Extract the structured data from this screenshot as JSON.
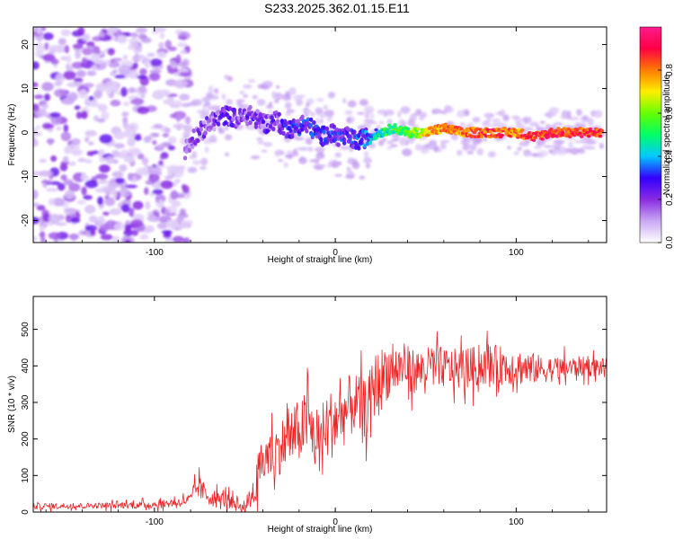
{
  "title": "S233.2025.362.01.15.E11",
  "chart_data": [
    {
      "type": "heatmap",
      "name": "spectrogram",
      "xlabel": "Height of straight line (km)",
      "ylabel": "Frequency (Hz)",
      "xlim": [
        -167,
        150
      ],
      "ylim": [
        -25,
        24
      ],
      "xticks": [
        -100,
        0,
        100
      ],
      "yticks": [
        -20,
        -10,
        0,
        10,
        20
      ],
      "colorbar": {
        "label": "Normalized spectral amplitude",
        "range": [
          0,
          1
        ],
        "ticks": [
          0,
          0.2,
          0.4,
          0.6,
          0.8
        ],
        "tick_labels": [
          "0.0",
          "0.2",
          "0.4",
          "0.6",
          "0.8"
        ],
        "colormap": [
          "#ffffff",
          "#c9a8f3",
          "#8a2be2",
          "#3300ff",
          "#00c8ff",
          "#00ff66",
          "#66ff00",
          "#ffee00",
          "#ff7a00",
          "#ff0044",
          "#ff1a8c"
        ]
      },
      "noise_region_x": [
        -167,
        -83
      ],
      "ridge": {
        "x": [
          -83,
          -78,
          -72,
          -66,
          -60,
          -54,
          -48,
          -43,
          -38,
          -33,
          -28,
          -23,
          -18,
          -13,
          -8,
          -3,
          2,
          7,
          12,
          18,
          25,
          32,
          40,
          50,
          60,
          70,
          80,
          90,
          100,
          110,
          120,
          130,
          140,
          148
        ],
        "freq_hz": [
          -4,
          -1,
          1,
          3,
          4,
          3,
          4,
          3,
          2,
          3,
          1,
          1,
          2,
          1,
          -1,
          0,
          -1,
          -1,
          -2,
          -1,
          0,
          1,
          0,
          0,
          1,
          0,
          0,
          0,
          0,
          -1,
          0,
          0,
          0,
          0
        ],
        "amplitude": [
          0.15,
          0.2,
          0.22,
          0.24,
          0.26,
          0.25,
          0.26,
          0.25,
          0.24,
          0.26,
          0.3,
          0.3,
          0.32,
          0.33,
          0.3,
          0.34,
          0.3,
          0.32,
          0.34,
          0.36,
          0.5,
          0.55,
          0.6,
          0.75,
          0.85,
          0.85,
          0.9,
          0.9,
          0.85,
          0.9,
          0.92,
          0.92,
          0.9,
          0.9
        ]
      }
    },
    {
      "type": "line",
      "name": "snr",
      "xlabel": "Height of straight line (km)",
      "ylabel": "SNR (10 * v/v)",
      "xlim": [
        -167,
        150
      ],
      "ylim": [
        0,
        590
      ],
      "xticks": [
        -100,
        0,
        100
      ],
      "yticks": [
        0,
        100,
        200,
        300,
        400,
        500
      ],
      "color": "#ee2222",
      "series": [
        {
          "name": "SNR",
          "x": [
            -167,
            -150,
            -130,
            -110,
            -95,
            -85,
            -80,
            -76,
            -72,
            -68,
            -64,
            -60,
            -55,
            -50,
            -45,
            -42,
            -38,
            -32,
            -26,
            -20,
            -15,
            -10,
            -5,
            0,
            5,
            10,
            15,
            18,
            22,
            25,
            28,
            32,
            38,
            45,
            55,
            65,
            75,
            85,
            95,
            105,
            115,
            125,
            135,
            150
          ],
          "values": [
            15,
            17,
            18,
            19,
            22,
            28,
            35,
            70,
            50,
            40,
            30,
            45,
            25,
            10,
            60,
            120,
            150,
            170,
            200,
            220,
            250,
            180,
            230,
            250,
            270,
            300,
            280,
            290,
            350,
            360,
            385,
            390,
            395,
            385,
            400,
            390,
            395,
            405,
            400,
            395,
            390,
            392,
            398,
            396
          ],
          "spread": [
            10,
            10,
            10,
            12,
            14,
            16,
            20,
            40,
            35,
            30,
            30,
            40,
            30,
            25,
            60,
            70,
            80,
            90,
            100,
            110,
            110,
            110,
            120,
            120,
            110,
            110,
            100,
            100,
            110,
            110,
            100,
            90,
            80,
            75,
            70,
            70,
            70,
            70,
            65,
            60,
            45,
            40,
            35,
            30
          ]
        }
      ]
    }
  ]
}
